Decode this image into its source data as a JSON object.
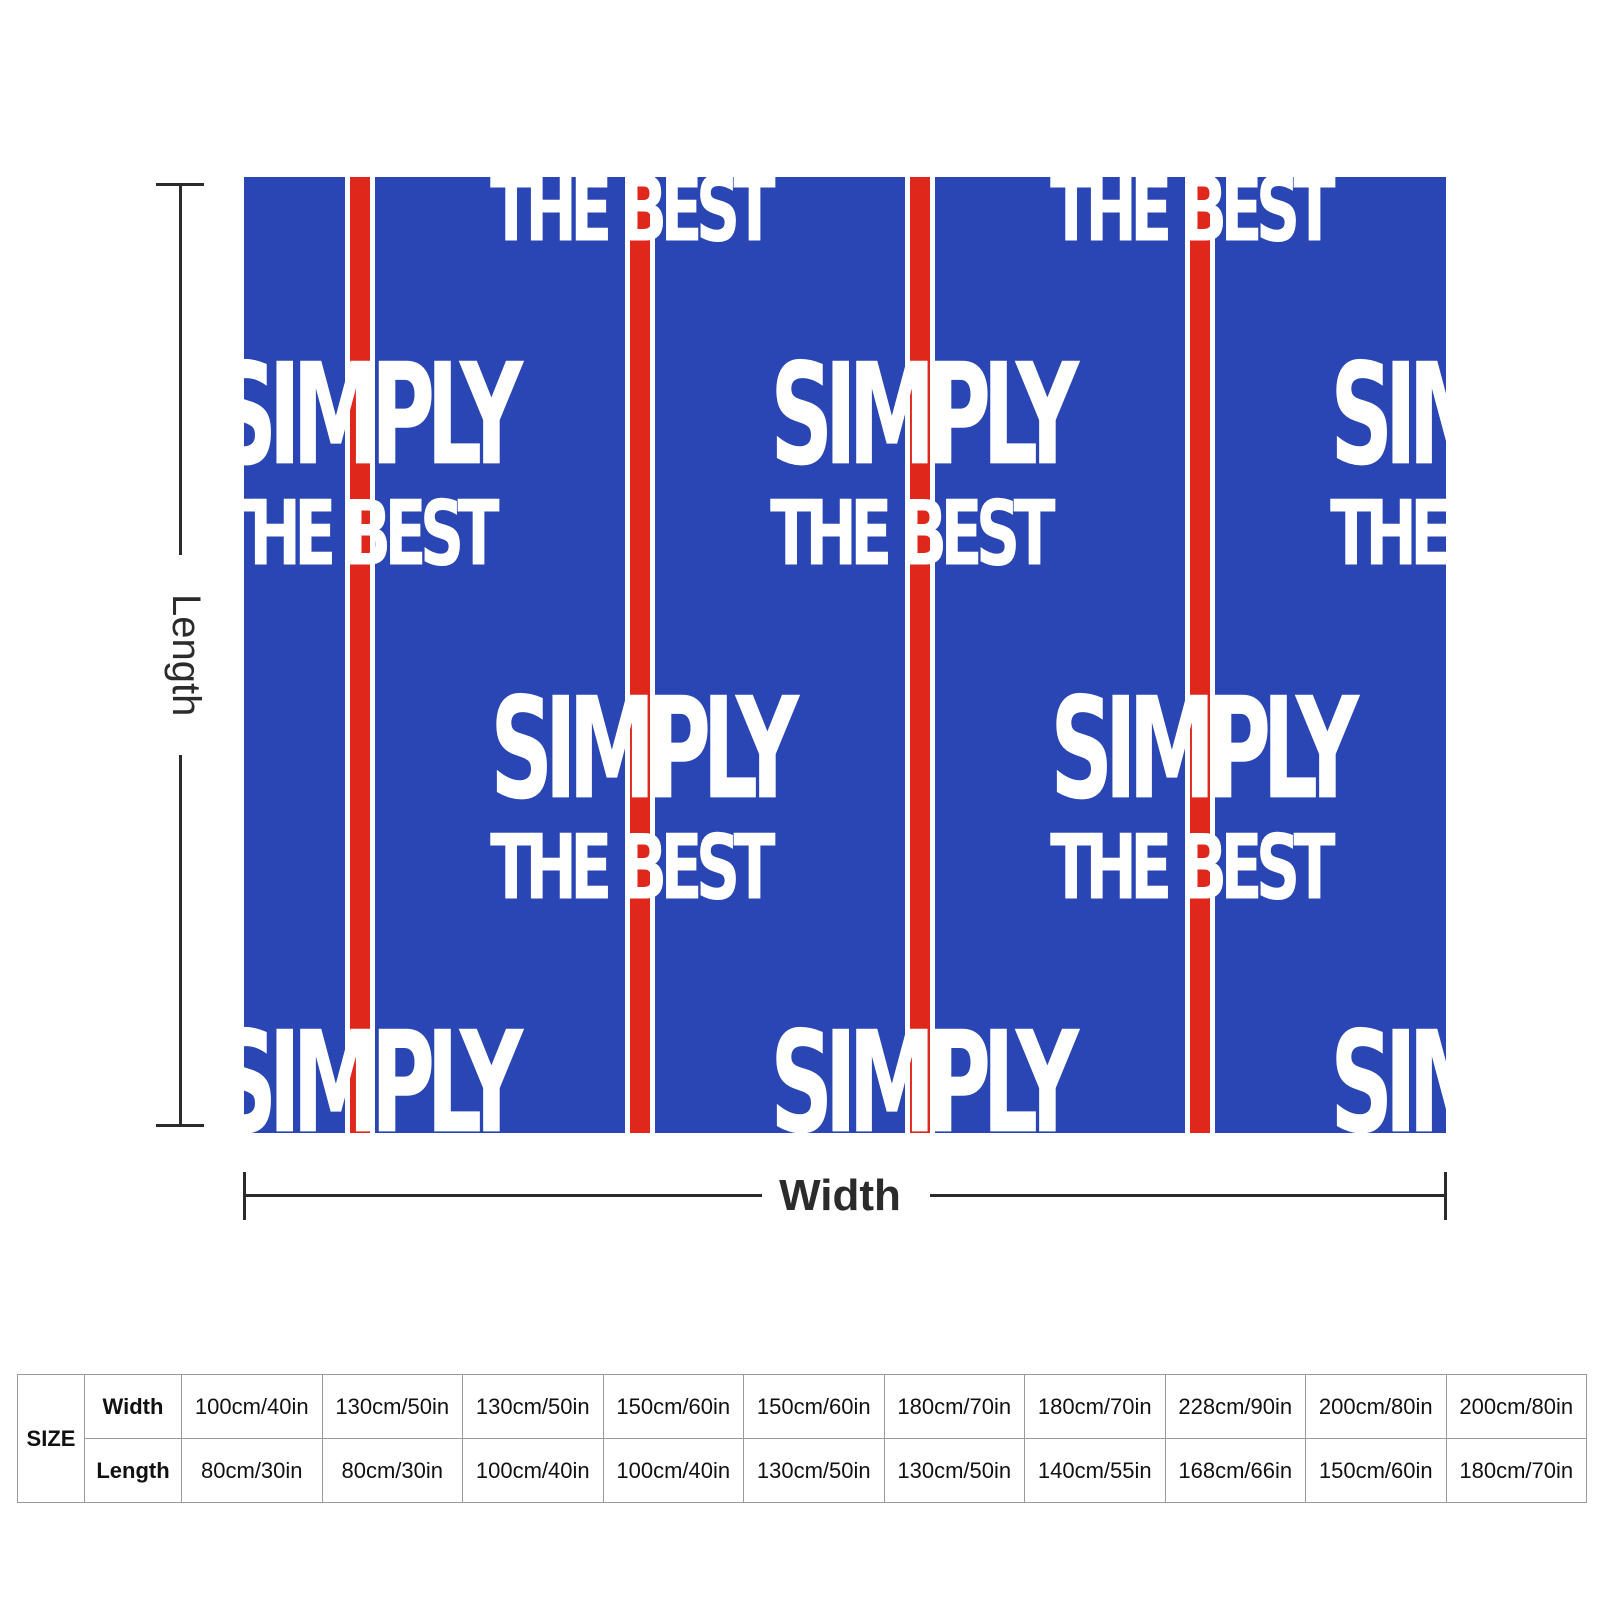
{
  "product": {
    "pattern_colors": {
      "background": "#2a46b4",
      "stripe": "#e0271c",
      "stripe_border": "#ffffff",
      "text": "#ffffff"
    },
    "logo_line_1": "SIMPLY",
    "logo_line_2": "THE BEST"
  },
  "dimensions": {
    "length_label": "Length",
    "width_label": "Width"
  },
  "size_table": {
    "size_label": "SIZE",
    "width_label": "Width",
    "length_label": "Length",
    "widths": [
      "100cm/40in",
      "130cm/50in",
      "130cm/50in",
      "150cm/60in",
      "150cm/60in",
      "180cm/70in",
      "180cm/70in",
      "228cm/90in",
      "200cm/80in",
      "200cm/80in"
    ],
    "lengths": [
      "80cm/30in",
      "80cm/30in",
      "100cm/40in",
      "100cm/40in",
      "130cm/50in",
      "130cm/50in",
      "140cm/55in",
      "168cm/66in",
      "150cm/60in",
      "180cm/70in"
    ]
  }
}
